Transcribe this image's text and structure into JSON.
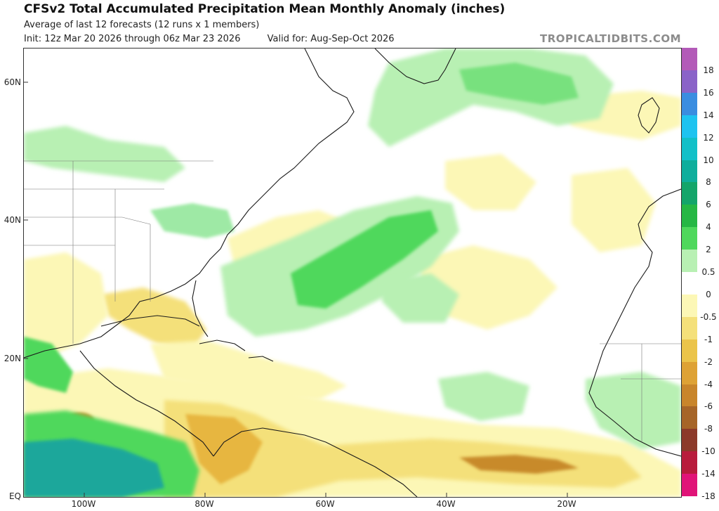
{
  "header": {
    "title": "CFSv2 Total Accumulated Precipitation Mean Monthly Anomaly (inches)",
    "subtitle": "Average of last 12 forecasts (12 runs x 1 members)",
    "init": "Init: 12z Mar 20 2026 through 06z Mar 23 2026",
    "valid": "Valid for: Aug-Sep-Oct 2026",
    "brand": "TROPICALTIDBITS.COM"
  },
  "map": {
    "lat_labels": [
      "60N",
      "40N",
      "20N",
      "EQ"
    ],
    "lon_labels": [
      "100W",
      "80W",
      "60W",
      "40W",
      "20W"
    ],
    "colors": {
      "neg_light": "#fcf7b6",
      "neg_mid": "#f4e07a",
      "neg_strong": "#e7b640",
      "neg_deep": "#c88a2c",
      "pos_light": "#b8f0b3",
      "pos_mid": "#4fd85c",
      "pos_strong": "#22b858",
      "pos_teal": "#1aa79b",
      "land_line": "#1a1a1a",
      "border_line": "#777777"
    }
  },
  "colorbar": {
    "labels": [
      "18",
      "16",
      "14",
      "12",
      "10",
      "8",
      "6",
      "4",
      "2",
      "0.5",
      "0",
      "-0.5",
      "-1",
      "-2",
      "-4",
      "-6",
      "-8",
      "-10",
      "-14",
      "-18"
    ],
    "colors": [
      "#b35ab8",
      "#8a63c8",
      "#3a8de0",
      "#1ec3f0",
      "#12c0c8",
      "#0fae9c",
      "#14a56a",
      "#26b744",
      "#4fd85c",
      "#b8f0b3",
      "#ffffff",
      "#fcf7b6",
      "#f4e07a",
      "#ebc44a",
      "#dea235",
      "#c8852b",
      "#a66528",
      "#8c3a2a",
      "#b81c3c",
      "#e01478"
    ]
  }
}
